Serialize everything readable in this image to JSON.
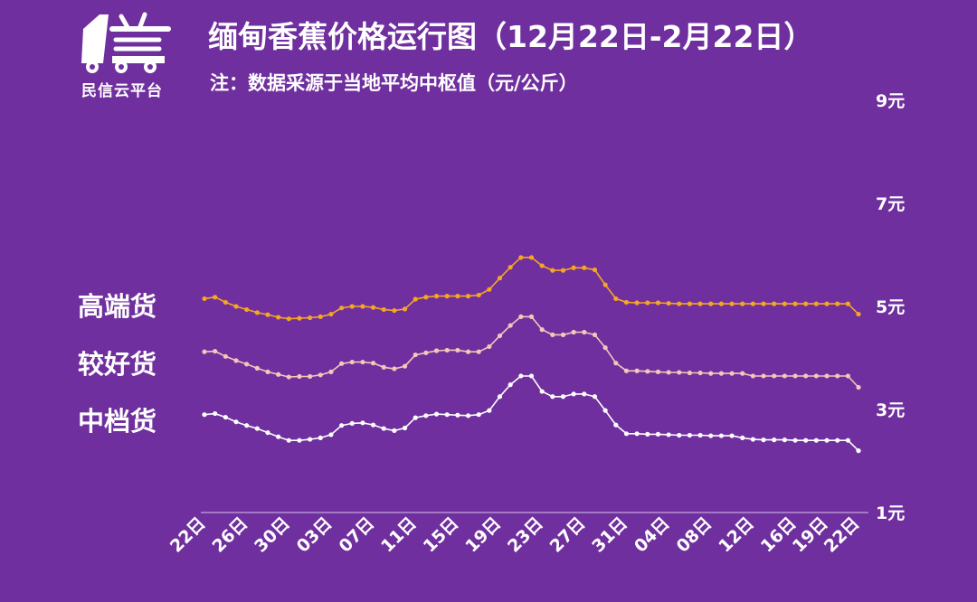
{
  "logo": {
    "text": "民信云平台",
    "icon": "truck-logo-icon"
  },
  "header": {
    "title": "缅甸香蕉价格运行图（12月22日-2月22日）",
    "note": "注：数据采源于当地平均中枢值（元/公斤）"
  },
  "colors": {
    "background": "#6f2f9e",
    "high": "#f5a623",
    "good": "#f7c6b8",
    "mid": "#ffffff",
    "axis": "#d9c2ea"
  },
  "chart_data": {
    "type": "line",
    "title": "缅甸香蕉价格运行图（12月22日-2月22日）",
    "ylabel": "元/公斤",
    "ylim": [
      1,
      9
    ],
    "yticks": [
      1,
      3,
      5,
      7,
      9
    ],
    "yticks_labels": [
      "1元",
      "3元",
      "5元",
      "7元",
      "9元"
    ],
    "y_axis_position": "right",
    "grid": false,
    "x_tick_labels": [
      "22日",
      "26日",
      "30日",
      "03日",
      "07日",
      "11日",
      "15日",
      "19日",
      "23日",
      "27日",
      "31日",
      "04日",
      "08日",
      "12日",
      "16日",
      "19日",
      "22日"
    ],
    "x_tick_index": [
      0,
      4,
      8,
      12,
      16,
      20,
      24,
      28,
      32,
      36,
      40,
      44,
      48,
      52,
      56,
      59,
      62
    ],
    "series": [
      {
        "name": "高端货",
        "color": "#f5a623",
        "values": [
          5.15,
          5.18,
          5.08,
          5.0,
          4.94,
          4.88,
          4.84,
          4.79,
          4.76,
          4.77,
          4.78,
          4.8,
          4.85,
          4.97,
          5.0,
          5.0,
          4.98,
          4.94,
          4.92,
          4.95,
          5.14,
          5.18,
          5.2,
          5.2,
          5.2,
          5.2,
          5.22,
          5.33,
          5.55,
          5.76,
          5.95,
          5.95,
          5.79,
          5.7,
          5.7,
          5.75,
          5.75,
          5.71,
          5.42,
          5.15,
          5.08,
          5.07,
          5.07,
          5.07,
          5.06,
          5.05,
          5.05,
          5.05,
          5.05,
          5.05,
          5.05,
          5.05,
          5.05,
          5.05,
          5.05,
          5.05,
          5.05,
          5.05,
          5.05,
          5.05,
          5.05,
          5.05,
          4.85
        ]
      },
      {
        "name": "较好货",
        "color": "#f7c6b8",
        "values": [
          4.12,
          4.13,
          4.03,
          3.95,
          3.88,
          3.8,
          3.73,
          3.68,
          3.63,
          3.64,
          3.64,
          3.67,
          3.73,
          3.89,
          3.92,
          3.92,
          3.9,
          3.82,
          3.79,
          3.84,
          4.06,
          4.1,
          4.14,
          4.15,
          4.15,
          4.12,
          4.12,
          4.22,
          4.43,
          4.63,
          4.8,
          4.8,
          4.55,
          4.45,
          4.45,
          4.5,
          4.5,
          4.45,
          4.2,
          3.9,
          3.75,
          3.75,
          3.74,
          3.73,
          3.72,
          3.72,
          3.71,
          3.71,
          3.7,
          3.7,
          3.7,
          3.7,
          3.65,
          3.65,
          3.65,
          3.65,
          3.65,
          3.65,
          3.65,
          3.65,
          3.65,
          3.65,
          3.43
        ]
      },
      {
        "name": "中档货",
        "color": "#ffffff",
        "values": [
          2.9,
          2.92,
          2.85,
          2.76,
          2.69,
          2.63,
          2.55,
          2.47,
          2.4,
          2.4,
          2.42,
          2.45,
          2.51,
          2.69,
          2.73,
          2.74,
          2.7,
          2.63,
          2.59,
          2.64,
          2.84,
          2.88,
          2.91,
          2.9,
          2.89,
          2.88,
          2.9,
          2.98,
          3.25,
          3.48,
          3.65,
          3.65,
          3.35,
          3.25,
          3.25,
          3.3,
          3.3,
          3.25,
          2.98,
          2.7,
          2.53,
          2.53,
          2.52,
          2.52,
          2.51,
          2.5,
          2.5,
          2.5,
          2.49,
          2.49,
          2.49,
          2.45,
          2.42,
          2.41,
          2.41,
          2.41,
          2.4,
          2.4,
          2.4,
          2.4,
          2.4,
          2.4,
          2.2
        ]
      }
    ]
  }
}
